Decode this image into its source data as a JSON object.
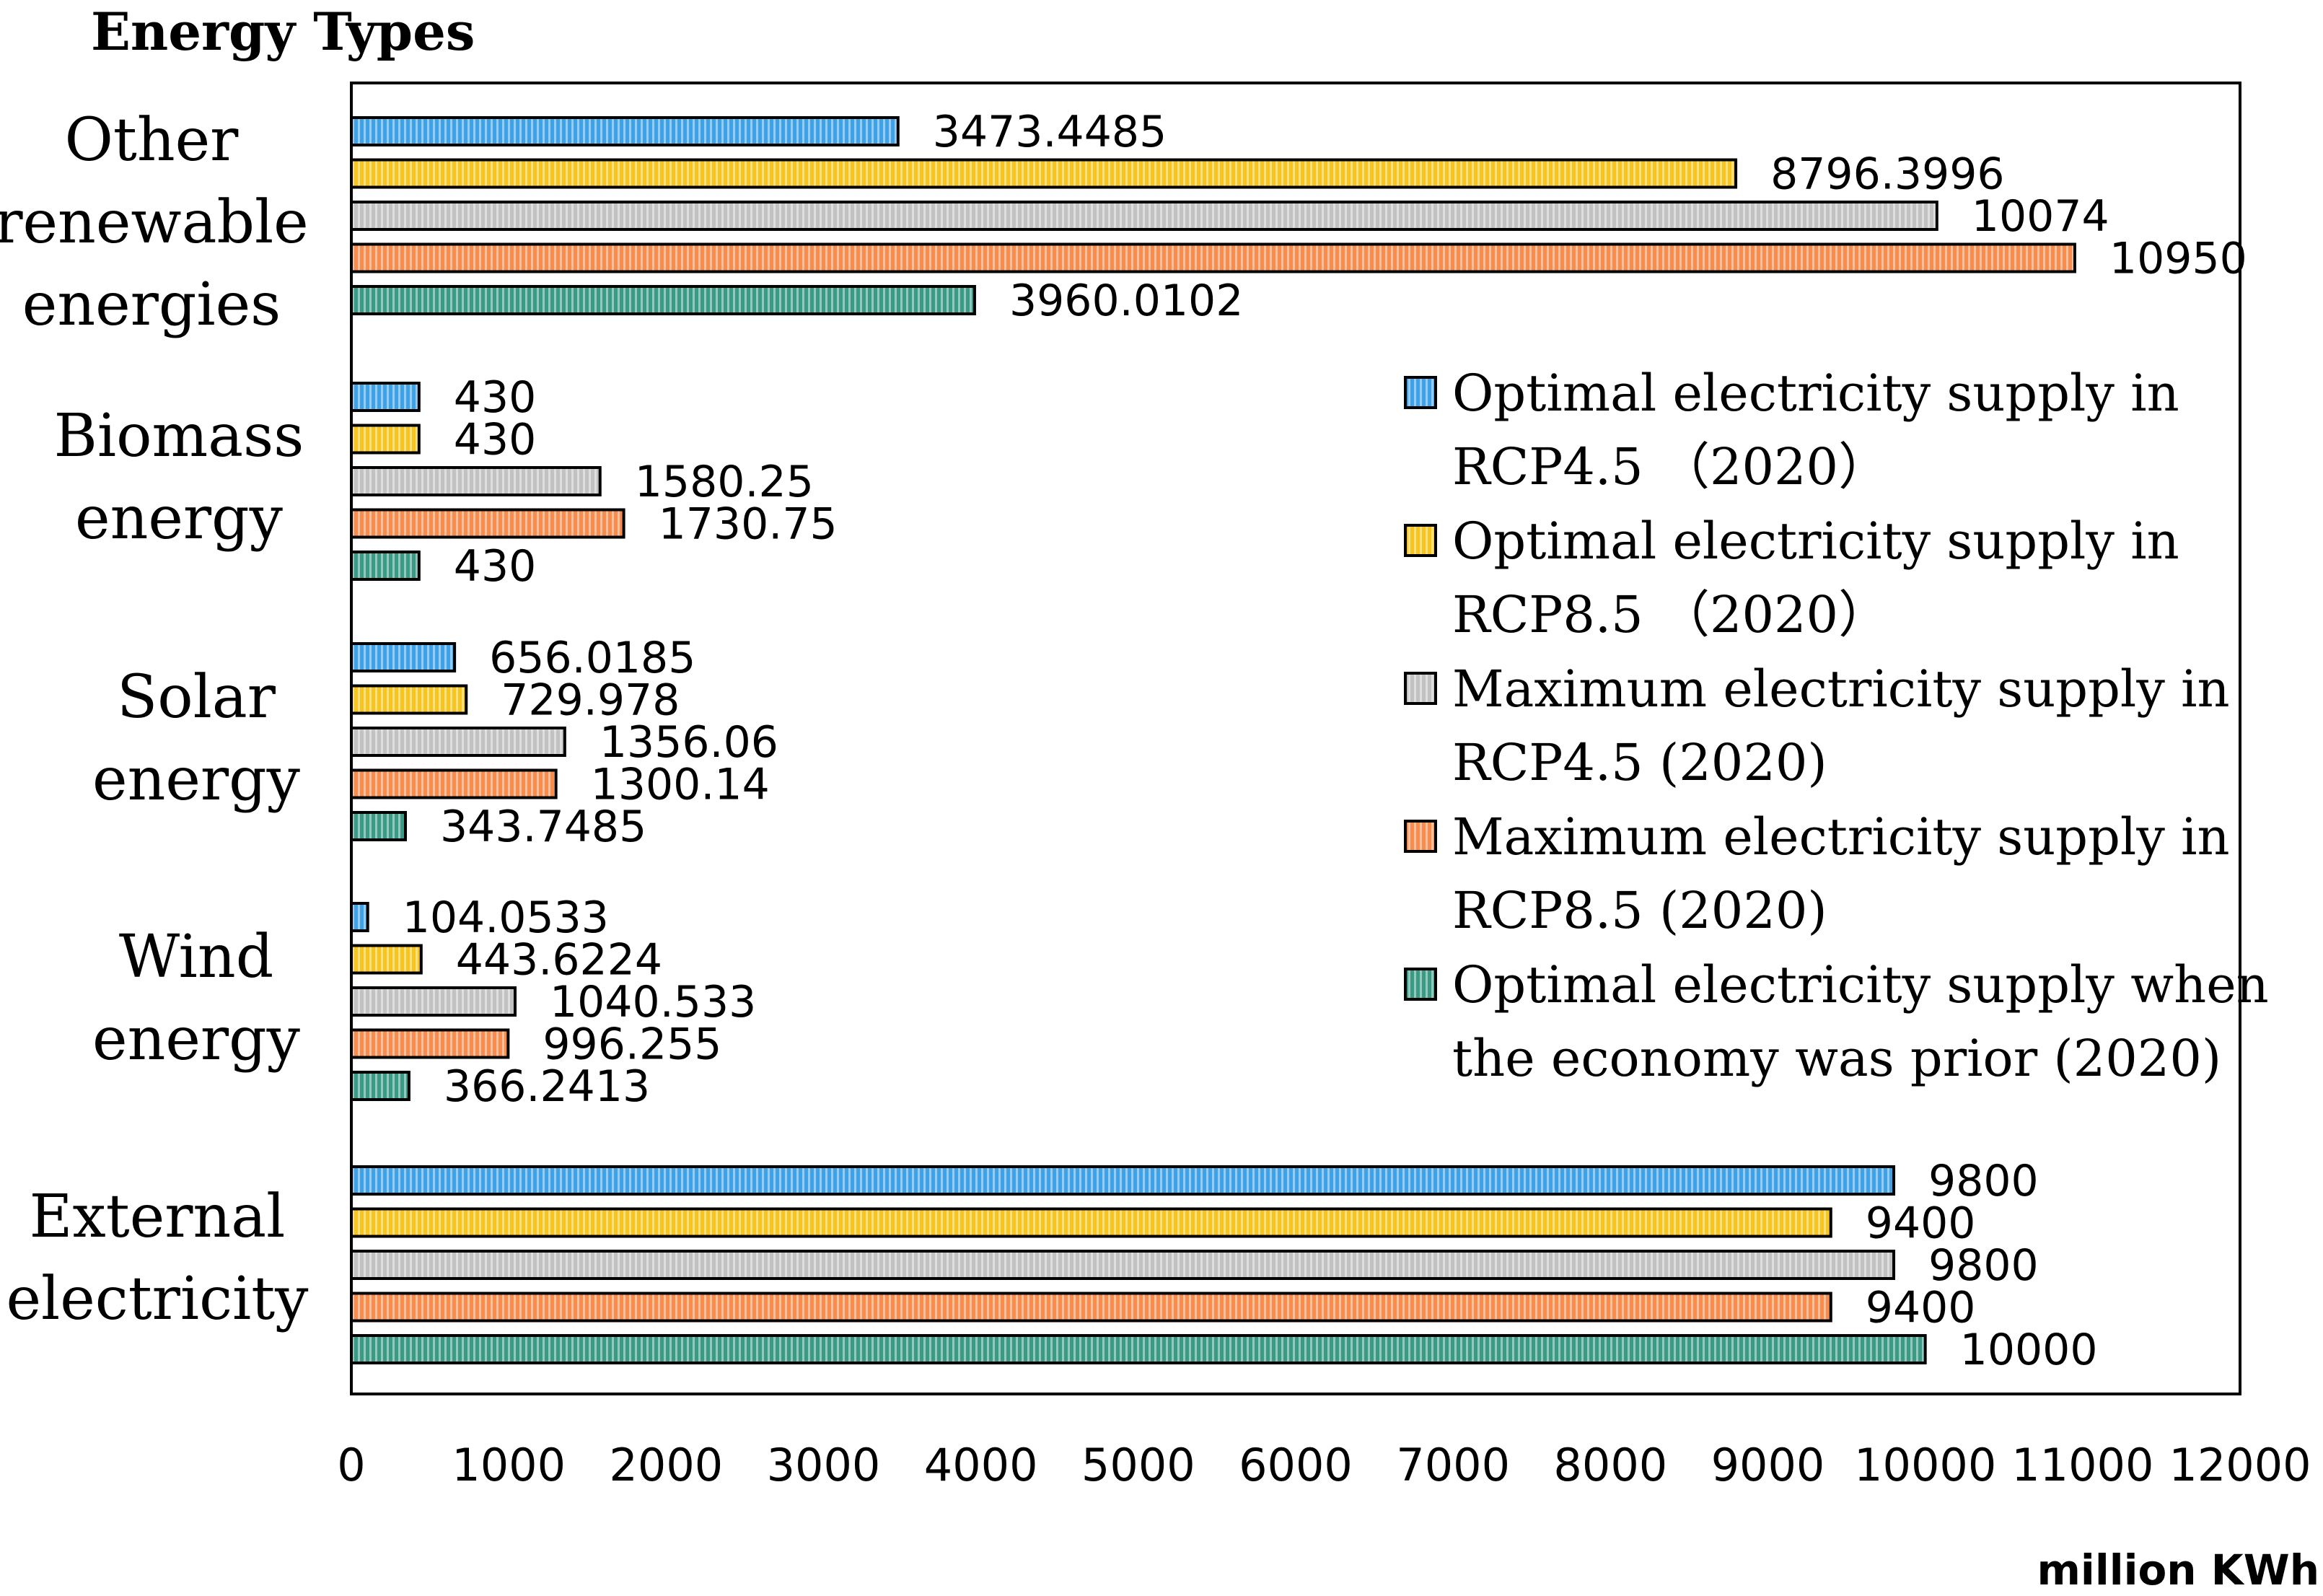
{
  "chart_data": {
    "type": "bar",
    "orientation": "horizontal",
    "title": "Energy Types",
    "xlabel": "million KWh",
    "ylabel": "Energy Types",
    "xlim": [
      0,
      12000
    ],
    "xticks": [
      0,
      1000,
      2000,
      3000,
      4000,
      5000,
      6000,
      7000,
      8000,
      9000,
      10000,
      11000,
      12000
    ],
    "grid": false,
    "legend_position": "right",
    "categories": [
      {
        "label_lines": [
          "Other",
          "renewable",
          "energies"
        ]
      },
      {
        "label_lines": [
          "Biomass",
          "energy"
        ]
      },
      {
        "label_lines": [
          "Solar",
          "energy"
        ]
      },
      {
        "label_lines": [
          "Wind",
          "energy"
        ]
      },
      {
        "label_lines": [
          "External",
          "electricity"
        ]
      }
    ],
    "series": [
      {
        "name_lines": [
          "Optimal electricity supply in",
          "RCP4.5 （2020）"
        ],
        "color": "#3fa2e6",
        "values": [
          3473.4485,
          430,
          656.0185,
          104.0533,
          9800
        ],
        "value_labels": [
          "3473.4485",
          "430",
          "656.0185",
          "104.0533",
          "9800"
        ]
      },
      {
        "name_lines": [
          "Optimal electricity supply in",
          "RCP8.5 （2020）"
        ],
        "color": "#f7c51e",
        "values": [
          8796.3996,
          430,
          729.978,
          443.6224,
          9400
        ],
        "value_labels": [
          "8796.3996",
          "430",
          "729.978",
          "443.6224",
          "9400"
        ]
      },
      {
        "name_lines": [
          "Maximum electricity supply in",
          "RCP4.5 (2020)"
        ],
        "color": "#c2c2c2",
        "values": [
          10074,
          1580.25,
          1356.06,
          1040.533,
          9800
        ],
        "value_labels": [
          "10074",
          "1580.25",
          "1356.06",
          "1040.533",
          "9800"
        ]
      },
      {
        "name_lines": [
          "Maximum electricity supply in",
          "RCP8.5 (2020)"
        ],
        "color": "#f78c4d",
        "values": [
          10950,
          1730.75,
          1300.14,
          996.255,
          9400
        ],
        "value_labels": [
          "10950",
          "1730.75",
          "1300.14",
          "996.255",
          "9400"
        ]
      },
      {
        "name_lines": [
          "Optimal electricity supply when",
          "the economy was prior (2020)"
        ],
        "color": "#3a9a86",
        "values": [
          3960.0102,
          430,
          343.7485,
          366.2413,
          10000
        ],
        "value_labels": [
          "3960.0102",
          "430",
          "343.7485",
          "366.2413",
          "10000"
        ]
      }
    ]
  }
}
